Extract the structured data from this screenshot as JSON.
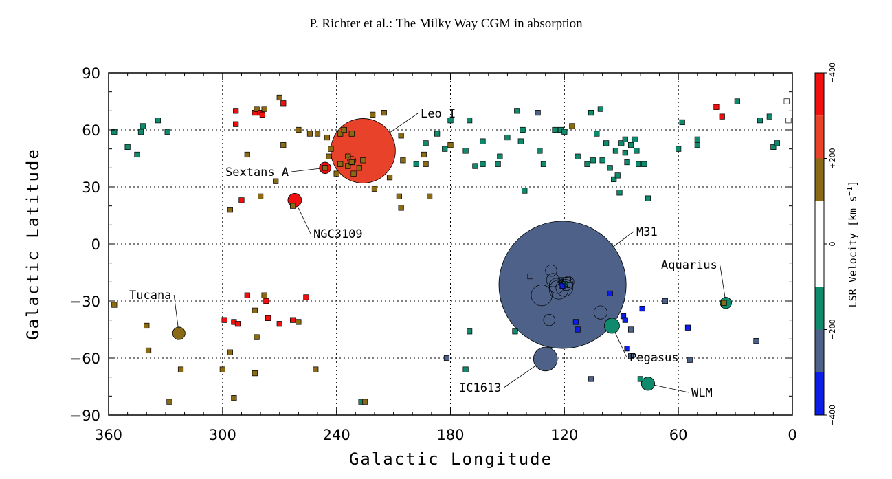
{
  "header": {
    "running_head": "P. Richter et al.: The Milky Way CGM in absorption"
  },
  "chart_data": {
    "type": "scatter",
    "title": "",
    "xlabel": "Galactic Longitude",
    "ylabel": "Galactic Latitude",
    "xlim": [
      360,
      0
    ],
    "ylim": [
      -90,
      90
    ],
    "x_reversed": true,
    "xticks": [
      "360",
      "300",
      "240",
      "180",
      "120",
      "60",
      "0"
    ],
    "yticks": [
      "90",
      "60",
      "30",
      "0",
      "−30",
      "−60",
      "−90"
    ],
    "grid": "dotted",
    "colorbar": {
      "title": "LSR Velocity [km s",
      "title_exponent": "−1",
      "title_close": "]",
      "ticks": [
        "+400",
        "+200",
        "0",
        "−200",
        "−400"
      ],
      "bins": [
        {
          "range": [
            300,
            400
          ],
          "color": "#f01010"
        },
        {
          "range": [
            200,
            300
          ],
          "color": "#e8422a"
        },
        {
          "range": [
            100,
            200
          ],
          "color": "#8a6a14"
        },
        {
          "range": [
            -100,
            100
          ],
          "color": "#ffffff"
        },
        {
          "range": [
            -200,
            -100
          ],
          "color": "#108a6c"
        },
        {
          "range": [
            -300,
            -200
          ],
          "color": "#4e6289"
        },
        {
          "range": [
            -400,
            -300
          ],
          "color": "#0a1ee8"
        }
      ]
    },
    "galaxies": [
      {
        "name": "Leo I",
        "l": 226,
        "b": 49,
        "r_deg": 17,
        "v": 285,
        "color": "#e8422a"
      },
      {
        "name": "Sextans A",
        "l": 246,
        "b": 40,
        "r_deg": 3,
        "v": 325,
        "color": "#f01010"
      },
      {
        "name": "NGC3109",
        "l": 262,
        "b": 23,
        "r_deg": 3.6,
        "v": 400,
        "color": "#f01010"
      },
      {
        "name": "M31",
        "l": 121,
        "b": -21.5,
        "r_deg": 33.5,
        "v": -300,
        "color": "#4e6289"
      },
      {
        "name": "Aquarius",
        "l": 35,
        "b": -31,
        "r_deg": 3,
        "v": -141,
        "color": "#108a6c"
      },
      {
        "name": "Tucana",
        "l": 323,
        "b": -47,
        "r_deg": 3.3,
        "v": 194,
        "color": "#8a6a14"
      },
      {
        "name": "Pegasus",
        "l": 95,
        "b": -43,
        "r_deg": 4,
        "v": -183,
        "color": "#108a6c"
      },
      {
        "name": "IC1613",
        "l": 130,
        "b": -60.5,
        "r_deg": 6.3,
        "v": -234,
        "color": "#4e6289"
      },
      {
        "name": "WLM",
        "l": 76,
        "b": -73.5,
        "r_deg": 3.5,
        "v": -122,
        "color": "#108a6c"
      }
    ],
    "sightlines": [
      {
        "l": 357,
        "b": 59,
        "c": "g"
      },
      {
        "l": 350,
        "b": 51,
        "c": "g"
      },
      {
        "l": 345,
        "b": 47,
        "c": "g"
      },
      {
        "l": 343,
        "b": 59,
        "c": "g"
      },
      {
        "l": 342,
        "b": 62,
        "c": "g"
      },
      {
        "l": 334,
        "b": 65,
        "c": "g"
      },
      {
        "l": 329,
        "b": 59,
        "c": "g"
      },
      {
        "l": 293,
        "b": 70,
        "c": "r"
      },
      {
        "l": 293,
        "b": 63,
        "c": "r"
      },
      {
        "l": 283,
        "b": 69,
        "c": "r"
      },
      {
        "l": 282,
        "b": 71,
        "c": "o"
      },
      {
        "l": 280,
        "b": 69,
        "c": "r"
      },
      {
        "l": 279,
        "b": 68,
        "c": "r"
      },
      {
        "l": 278,
        "b": 71,
        "c": "o"
      },
      {
        "l": 270,
        "b": 77,
        "c": "o"
      },
      {
        "l": 268,
        "b": 74,
        "c": "r"
      },
      {
        "l": 287,
        "b": 47,
        "c": "o"
      },
      {
        "l": 280,
        "b": 25,
        "c": "o"
      },
      {
        "l": 290,
        "b": 23,
        "c": "r"
      },
      {
        "l": 296,
        "b": 18,
        "c": "o"
      },
      {
        "l": 272,
        "b": 33,
        "c": "o"
      },
      {
        "l": 268,
        "b": 52,
        "c": "o"
      },
      {
        "l": 260,
        "b": 60,
        "c": "o"
      },
      {
        "l": 254,
        "b": 58,
        "c": "o"
      },
      {
        "l": 250,
        "b": 58,
        "c": "o"
      },
      {
        "l": 243,
        "b": 50,
        "c": "o"
      },
      {
        "l": 244,
        "b": 46,
        "c": "o"
      },
      {
        "l": 246,
        "b": 40,
        "c": "o"
      },
      {
        "l": 245,
        "b": 56,
        "c": "o"
      },
      {
        "l": 238,
        "b": 58,
        "c": "o"
      },
      {
        "l": 236,
        "b": 60,
        "c": "o"
      },
      {
        "l": 232,
        "b": 58,
        "c": "o"
      },
      {
        "l": 238,
        "b": 42,
        "c": "o"
      },
      {
        "l": 234,
        "b": 46,
        "c": "o"
      },
      {
        "l": 234,
        "b": 41,
        "c": "o"
      },
      {
        "l": 232,
        "b": 43,
        "c": "o"
      },
      {
        "l": 231,
        "b": 37,
        "c": "o"
      },
      {
        "l": 228,
        "b": 40,
        "c": "o"
      },
      {
        "l": 226,
        "b": 44,
        "c": "o"
      },
      {
        "l": 240,
        "b": 37,
        "c": "o"
      },
      {
        "l": 221,
        "b": 68,
        "c": "o"
      },
      {
        "l": 215,
        "b": 69,
        "c": "o"
      },
      {
        "l": 206,
        "b": 57,
        "c": "o"
      },
      {
        "l": 205,
        "b": 44,
        "c": "o"
      },
      {
        "l": 212,
        "b": 35,
        "c": "o"
      },
      {
        "l": 220,
        "b": 29,
        "c": "o"
      },
      {
        "l": 207,
        "b": 25,
        "c": "o"
      },
      {
        "l": 206,
        "b": 19,
        "c": "o"
      },
      {
        "l": 194,
        "b": 47,
        "c": "o"
      },
      {
        "l": 193,
        "b": 42,
        "c": "o"
      },
      {
        "l": 191,
        "b": 25,
        "c": "o"
      },
      {
        "l": 180,
        "b": 52,
        "c": "o"
      },
      {
        "l": 263,
        "b": 20,
        "c": "o"
      },
      {
        "l": 180,
        "b": 65,
        "c": "g"
      },
      {
        "l": 170,
        "b": 65,
        "c": "g"
      },
      {
        "l": 183,
        "b": 50,
        "c": "g"
      },
      {
        "l": 187,
        "b": 58,
        "c": "g"
      },
      {
        "l": 193,
        "b": 53,
        "c": "g"
      },
      {
        "l": 198,
        "b": 42,
        "c": "g"
      },
      {
        "l": 172,
        "b": 49,
        "c": "g"
      },
      {
        "l": 167,
        "b": 41,
        "c": "g"
      },
      {
        "l": 163,
        "b": 42,
        "c": "g"
      },
      {
        "l": 163,
        "b": 54,
        "c": "g"
      },
      {
        "l": 155,
        "b": 42,
        "c": "g"
      },
      {
        "l": 154,
        "b": 46,
        "c": "g"
      },
      {
        "l": 150,
        "b": 56,
        "c": "g"
      },
      {
        "l": 145,
        "b": 70,
        "c": "g"
      },
      {
        "l": 143,
        "b": 54,
        "c": "g"
      },
      {
        "l": 142,
        "b": 60,
        "c": "g"
      },
      {
        "l": 141,
        "b": 28,
        "c": "g"
      },
      {
        "l": 133,
        "b": 49,
        "c": "g"
      },
      {
        "l": 131,
        "b": 42,
        "c": "g"
      },
      {
        "l": 125,
        "b": 60,
        "c": "g"
      },
      {
        "l": 122,
        "b": 60,
        "c": "g"
      },
      {
        "l": 120,
        "b": 59,
        "c": "g"
      },
      {
        "l": 116,
        "b": 62,
        "c": "o"
      },
      {
        "l": 113,
        "b": 46,
        "c": "g"
      },
      {
        "l": 108,
        "b": 42,
        "c": "g"
      },
      {
        "l": 106,
        "b": 69,
        "c": "g"
      },
      {
        "l": 105,
        "b": 44,
        "c": "g"
      },
      {
        "l": 103,
        "b": 58,
        "c": "g"
      },
      {
        "l": 101,
        "b": 71,
        "c": "g"
      },
      {
        "l": 100,
        "b": 44,
        "c": "g"
      },
      {
        "l": 98,
        "b": 53,
        "c": "g"
      },
      {
        "l": 96,
        "b": 40,
        "c": "g"
      },
      {
        "l": 94,
        "b": 34,
        "c": "g"
      },
      {
        "l": 93,
        "b": 49,
        "c": "g"
      },
      {
        "l": 92,
        "b": 36,
        "c": "g"
      },
      {
        "l": 91,
        "b": 27,
        "c": "g"
      },
      {
        "l": 90,
        "b": 53,
        "c": "g"
      },
      {
        "l": 88,
        "b": 55,
        "c": "g"
      },
      {
        "l": 88,
        "b": 48,
        "c": "g"
      },
      {
        "l": 87,
        "b": 43,
        "c": "g"
      },
      {
        "l": 85,
        "b": 52,
        "c": "g"
      },
      {
        "l": 83,
        "b": 55,
        "c": "g"
      },
      {
        "l": 82,
        "b": 49,
        "c": "g"
      },
      {
        "l": 81,
        "b": 42,
        "c": "g"
      },
      {
        "l": 78,
        "b": 42,
        "c": "g"
      },
      {
        "l": 76,
        "b": 24,
        "c": "g"
      },
      {
        "l": 134,
        "b": 69,
        "c": "s"
      },
      {
        "l": 60,
        "b": 50,
        "c": "g"
      },
      {
        "l": 58,
        "b": 64,
        "c": "g"
      },
      {
        "l": 50,
        "b": 55,
        "c": "g"
      },
      {
        "l": 50,
        "b": 52,
        "c": "g"
      },
      {
        "l": 29,
        "b": 75,
        "c": "g"
      },
      {
        "l": 17,
        "b": 65,
        "c": "g"
      },
      {
        "l": 12,
        "b": 67,
        "c": "g"
      },
      {
        "l": 10,
        "b": 51,
        "c": "g"
      },
      {
        "l": 8,
        "b": 53,
        "c": "g"
      },
      {
        "l": 40,
        "b": 72,
        "c": "r"
      },
      {
        "l": 37,
        "b": 67,
        "c": "r"
      },
      {
        "l": 3,
        "b": 75,
        "c": "w"
      },
      {
        "l": 2,
        "b": 65,
        "c": "w"
      },
      {
        "l": 287,
        "b": -27,
        "c": "r"
      },
      {
        "l": 278,
        "b": -27,
        "c": "o"
      },
      {
        "l": 277,
        "b": -30,
        "c": "r"
      },
      {
        "l": 283,
        "b": -35,
        "c": "o"
      },
      {
        "l": 276,
        "b": -39,
        "c": "r"
      },
      {
        "l": 294,
        "b": -41,
        "c": "r"
      },
      {
        "l": 292,
        "b": -42,
        "c": "r"
      },
      {
        "l": 299,
        "b": -40,
        "c": "r"
      },
      {
        "l": 270,
        "b": -42,
        "c": "r"
      },
      {
        "l": 263,
        "b": -40,
        "c": "r"
      },
      {
        "l": 260,
        "b": -41,
        "c": "o"
      },
      {
        "l": 256,
        "b": -28,
        "c": "r"
      },
      {
        "l": 282,
        "b": -49,
        "c": "o"
      },
      {
        "l": 296,
        "b": -57,
        "c": "o"
      },
      {
        "l": 300,
        "b": -66,
        "c": "o"
      },
      {
        "l": 283,
        "b": -68,
        "c": "o"
      },
      {
        "l": 251,
        "b": -66,
        "c": "o"
      },
      {
        "l": 294,
        "b": -81,
        "c": "o"
      },
      {
        "l": 322,
        "b": -66,
        "c": "o"
      },
      {
        "l": 328,
        "b": -83,
        "c": "o"
      },
      {
        "l": 339,
        "b": -56,
        "c": "o"
      },
      {
        "l": 340,
        "b": -43,
        "c": "o"
      },
      {
        "l": 357,
        "b": -32,
        "c": "o"
      },
      {
        "l": 138,
        "b": -17,
        "c": "s"
      },
      {
        "l": 122,
        "b": -19,
        "c": "s"
      },
      {
        "l": 118,
        "b": -19,
        "c": "s"
      },
      {
        "l": 120,
        "b": -21,
        "c": "g"
      },
      {
        "l": 121,
        "b": -22,
        "c": "b"
      },
      {
        "l": 114,
        "b": -41,
        "c": "b"
      },
      {
        "l": 113,
        "b": -45,
        "c": "b"
      },
      {
        "l": 96,
        "b": -26,
        "c": "b"
      },
      {
        "l": 89,
        "b": -38,
        "c": "b"
      },
      {
        "l": 88,
        "b": -40,
        "c": "b"
      },
      {
        "l": 87,
        "b": -55,
        "c": "b"
      },
      {
        "l": 79,
        "b": -34,
        "c": "b"
      },
      {
        "l": 85,
        "b": -45,
        "c": "s"
      },
      {
        "l": 85,
        "b": -59,
        "c": "s"
      },
      {
        "l": 67,
        "b": -30,
        "c": "s"
      },
      {
        "l": 55,
        "b": -44,
        "c": "b"
      },
      {
        "l": 54,
        "b": -61,
        "c": "s"
      },
      {
        "l": 19,
        "b": -51,
        "c": "s"
      },
      {
        "l": 36,
        "b": -31,
        "c": "o"
      },
      {
        "l": 182,
        "b": -60,
        "c": "s"
      },
      {
        "l": 172,
        "b": -66,
        "c": "g"
      },
      {
        "l": 170,
        "b": -46,
        "c": "g"
      },
      {
        "l": 146,
        "b": -46,
        "c": "g"
      },
      {
        "l": 106,
        "b": -71,
        "c": "s"
      },
      {
        "l": 80,
        "b": -71,
        "c": "g"
      },
      {
        "l": 227,
        "b": -83,
        "c": "g"
      },
      {
        "l": 225,
        "b": -83,
        "c": "o"
      }
    ],
    "m31_rings": [
      {
        "l": 127,
        "b": -14,
        "r": 3
      },
      {
        "l": 126,
        "b": -19,
        "r": 3.5
      },
      {
        "l": 124,
        "b": -22,
        "r": 4
      },
      {
        "l": 123,
        "b": -24,
        "r": 5
      },
      {
        "l": 120,
        "b": -23,
        "r": 4.5
      },
      {
        "l": 119,
        "b": -21,
        "r": 3.5
      },
      {
        "l": 118,
        "b": -20,
        "r": 3
      },
      {
        "l": 132,
        "b": -27,
        "r": 5.5
      },
      {
        "l": 128,
        "b": -40,
        "r": 3
      },
      {
        "l": 101,
        "b": -36,
        "r": 3.5
      }
    ],
    "leo_rings": [
      {
        "l": 232,
        "b": 44,
        "r": 2.2
      }
    ],
    "annotations": [
      {
        "name": "Leo I",
        "tx": 612,
        "ty": 171
      },
      {
        "name": "Sextans A",
        "tx": 328,
        "ty": 256
      },
      {
        "name": "NGC3109",
        "tx": 456,
        "ty": 346
      },
      {
        "name": "M31",
        "tx": 926,
        "ty": 343
      },
      {
        "name": "Aquarius",
        "tx": 962,
        "ty": 391
      },
      {
        "name": "Tucana",
        "tx": 188,
        "ty": 435
      },
      {
        "name": "Pegasus",
        "tx": 916,
        "ty": 526
      },
      {
        "name": "IC1613",
        "tx": 668,
        "ty": 570
      },
      {
        "name": "WLM",
        "tx": 1006,
        "ty": 577
      }
    ],
    "sightline_colors": {
      "r": "#f01010",
      "o": "#8a6a14",
      "g": "#108a6c",
      "s": "#4e6289",
      "b": "#0a1ee8",
      "w": "#ffffff"
    }
  }
}
